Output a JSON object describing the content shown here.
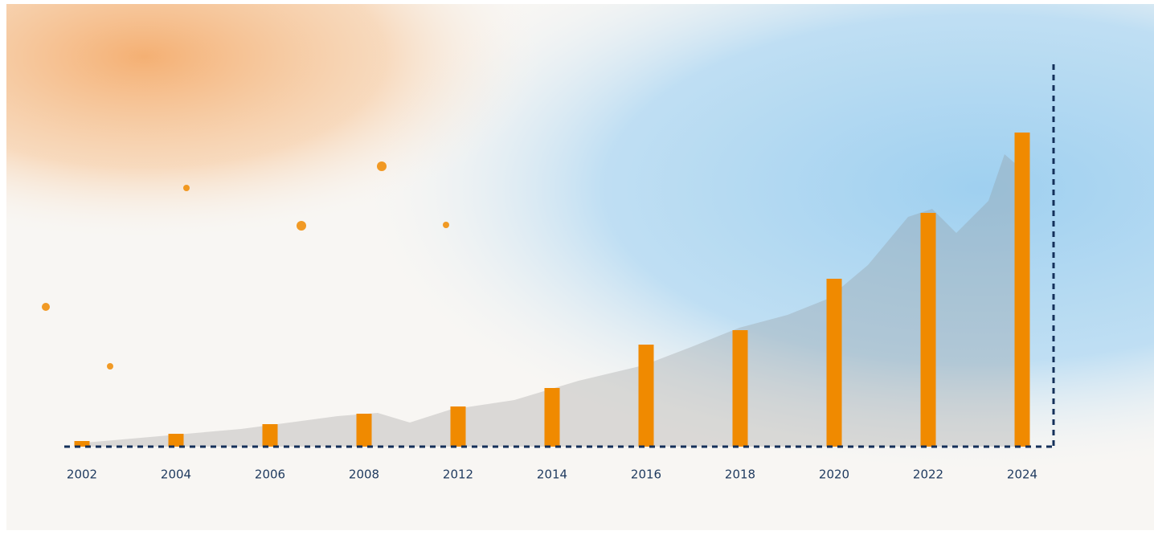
{
  "chart_data": {
    "type": "bar",
    "categories": [
      "2002",
      "2004",
      "2006",
      "2008",
      "2012",
      "2014",
      "2016",
      "2018",
      "2020",
      "2022",
      "2024"
    ],
    "values": [
      7,
      16,
      28,
      41,
      50,
      73,
      127,
      145,
      209,
      291,
      391
    ],
    "color": "#f08a00",
    "ylim": [
      0,
      476
    ],
    "grid": false
  }
}
